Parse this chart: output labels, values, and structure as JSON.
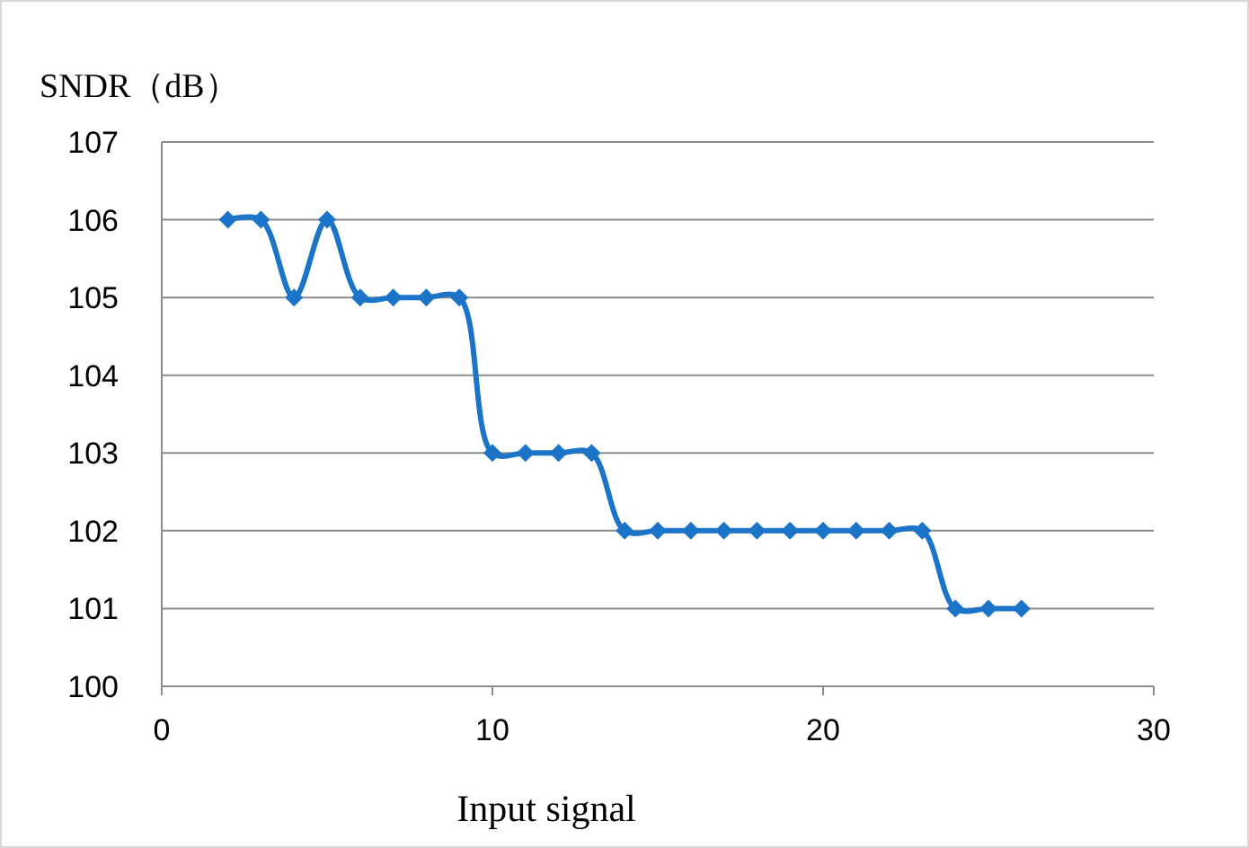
{
  "chart_data": {
    "type": "line",
    "xlabel": "Input signal",
    "ylabel": "SNDR（dB）",
    "x": [
      2,
      3,
      4,
      5,
      6,
      7,
      8,
      9,
      10,
      11,
      12,
      13,
      14,
      15,
      16,
      17,
      18,
      19,
      20,
      21,
      22,
      23,
      24,
      25,
      26
    ],
    "series": [
      {
        "color": "#1c74c8",
        "values": [
          106,
          106,
          105,
          106,
          105,
          105,
          105,
          105,
          103,
          103,
          103,
          103,
          102,
          102,
          102,
          102,
          102,
          102,
          102,
          102,
          102,
          102,
          101,
          101,
          101
        ]
      }
    ],
    "xlim": [
      0,
      30
    ],
    "xticks": [
      0,
      10,
      20,
      30
    ],
    "ylim": [
      100,
      107
    ],
    "yticks": [
      100,
      101,
      102,
      103,
      104,
      105,
      106,
      107
    ],
    "grid": "y",
    "marker": "diamond",
    "line_style": "solid"
  }
}
